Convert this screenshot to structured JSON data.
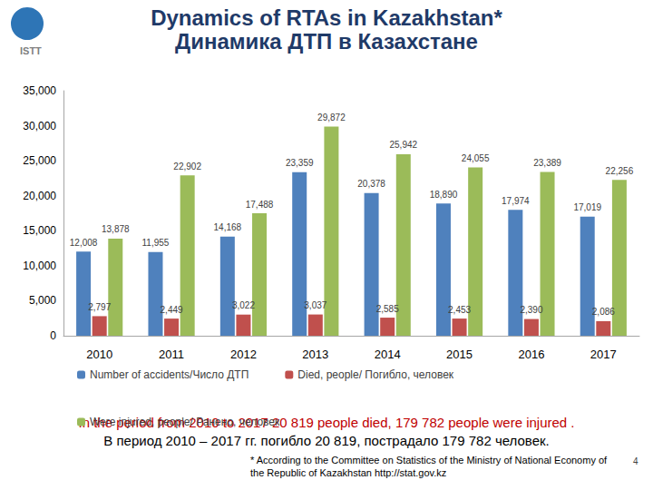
{
  "chart_data": {
    "type": "bar",
    "title": "Dynamics of RTAs in Kazakhstan*",
    "subtitle": "Динамика ДТП в Казахстане",
    "categories": [
      "2010",
      "2011",
      "2012",
      "2013",
      "2014",
      "2015",
      "2016",
      "2017"
    ],
    "series": [
      {
        "name": "Number of accidents/Число ДТП",
        "color": "#4f81bd",
        "values": [
          12008,
          11955,
          14168,
          23359,
          20378,
          18890,
          17974,
          17019
        ],
        "value_labels": [
          "12,008",
          "11,955",
          "14,168",
          "23,359",
          "20,378",
          "18,890",
          "17,974",
          "17,019"
        ]
      },
      {
        "name": "Died, people/ Погибло, человек",
        "color": "#c0504d",
        "values": [
          2797,
          2449,
          3022,
          3037,
          2585,
          2453,
          2390,
          2086
        ],
        "value_labels": [
          "2,797",
          "2,449",
          "3,022",
          "3,037",
          "2,585",
          "2,453",
          "2,390",
          "2,086"
        ]
      },
      {
        "name": "Were injured, people/ Ранено, человек",
        "color": "#9bbb59",
        "values": [
          13878,
          22902,
          17488,
          29872,
          25942,
          24055,
          23389,
          22256
        ],
        "value_labels": [
          "13,878",
          "22,902",
          "17,488",
          "29,872",
          "25,942",
          "24,055",
          "23,389",
          "22,256"
        ]
      }
    ],
    "ylim": [
      0,
      35000
    ],
    "yticks": [
      0,
      {
        "value": 5000,
        "label": "5,000"
      },
      {
        "value": 10000,
        "label": "10,000"
      },
      {
        "value": 15000,
        "label": "15,000"
      },
      {
        "value": 20000,
        "label": "20,000"
      },
      {
        "value": 25000,
        "label": "25,000"
      },
      {
        "value": 30000,
        "label": "30,000"
      },
      {
        "value": 35000,
        "label": "35,000"
      }
    ],
    "grid": false,
    "legend": "bottom",
    "data_labels": true,
    "annotations": [
      "ISTT",
      "In the period from 2010 to 2017 20 819 people died, 179 782 people were injured .",
      "В период 2010 – 2017 гг. погибло 20 819, пострадало 179 782 человек.",
      "* According to the Committee on Statistics of the Ministry of National Economy of the Republic of Kazakhstan http://stat.gov.kz",
      "4"
    ]
  }
}
